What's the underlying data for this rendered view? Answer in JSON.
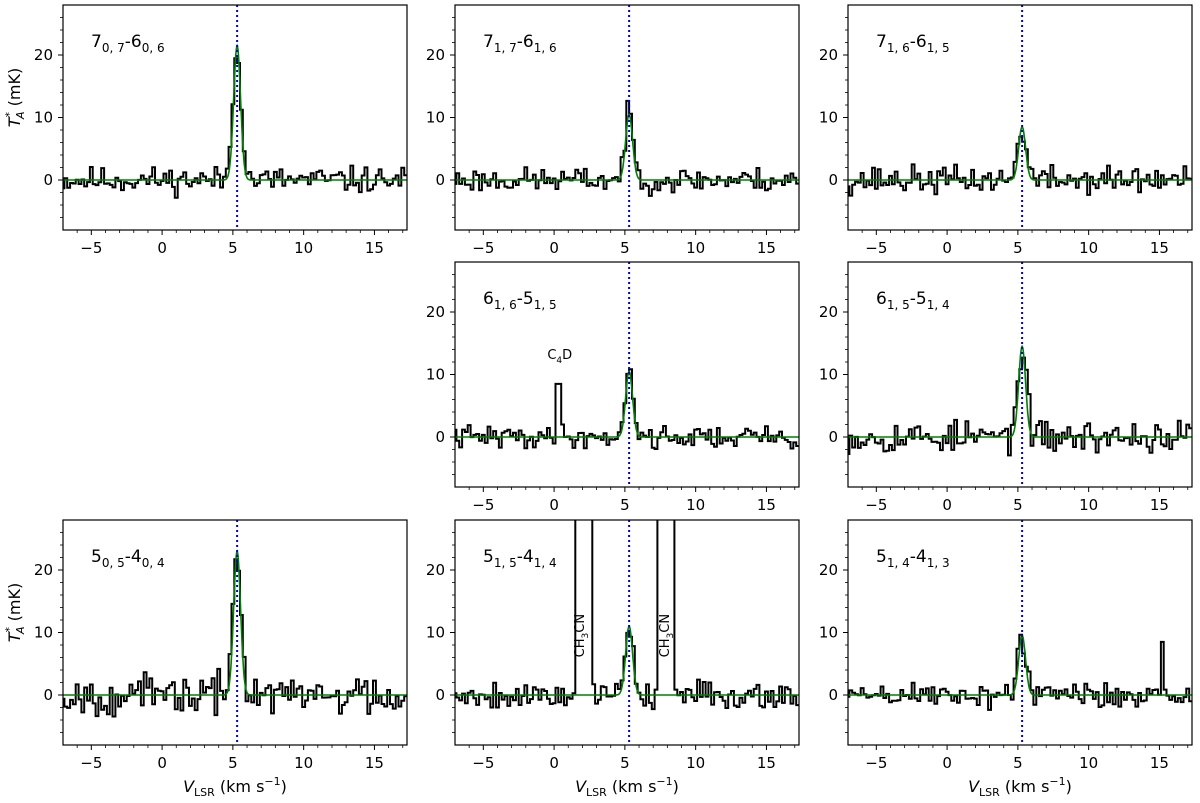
{
  "figure": {
    "xlabel_main": "V",
    "xlabel_sub": "LSR",
    "xlabel_unit": " (km s",
    "xlabel_exp": "−1",
    "xlabel_close": ")",
    "ylabel_main": "T",
    "ylabel_sup": "*",
    "ylabel_sub": "A",
    "ylabel_unit": " (mK)"
  },
  "colors": {
    "spectrum": "#000000",
    "fit": "#008000",
    "vlsr": "#0000cc"
  },
  "chart_data": [
    {
      "type": "line",
      "panel": "7_0,7-6_0,6",
      "label_j": "7",
      "label_ka": "0, 7",
      "label_dash": "-",
      "label_j2": "6",
      "label_kb": "0, 6",
      "xlim": [
        -7,
        17.3
      ],
      "ylim": [
        -8,
        28
      ],
      "xticks": [
        "−5",
        "0",
        "5",
        "10",
        "15"
      ],
      "yticks": [
        "0",
        "10",
        "20"
      ],
      "show_xlabel": false,
      "show_ylabel": true,
      "vlsr": 5.3,
      "fit_peak": 21.5,
      "seed": 11,
      "noise": 1.6,
      "annotations": [],
      "extra_spikes": []
    },
    {
      "type": "line",
      "panel": "7_1,7-6_1,6",
      "label_j": "7",
      "label_ka": "1, 7",
      "label_dash": "-",
      "label_j2": "6",
      "label_kb": "1, 6",
      "xlim": [
        -7,
        17.3
      ],
      "ylim": [
        -8,
        28
      ],
      "xticks": [
        "−5",
        "0",
        "5",
        "10",
        "15"
      ],
      "yticks": [
        "0",
        "10",
        "20"
      ],
      "show_xlabel": false,
      "show_ylabel": false,
      "vlsr": 5.3,
      "fit_peak": 10.5,
      "seed": 23,
      "noise": 1.5,
      "annotations": [],
      "extra_spikes": []
    },
    {
      "type": "line",
      "panel": "7_1,6-6_1,5",
      "label_j": "7",
      "label_ka": "1, 6",
      "label_dash": "-",
      "label_j2": "6",
      "label_kb": "1, 5",
      "xlim": [
        -7,
        17.3
      ],
      "ylim": [
        -8,
        28
      ],
      "xticks": [
        "−5",
        "0",
        "5",
        "10",
        "15"
      ],
      "yticks": [
        "0",
        "10",
        "20"
      ],
      "show_xlabel": false,
      "show_ylabel": false,
      "vlsr": 5.3,
      "fit_peak": 8.5,
      "seed": 37,
      "noise": 1.7,
      "annotations": [],
      "extra_spikes": []
    },
    {
      "type": "line",
      "panel": "6_1,6-5_1,5",
      "label_j": "6",
      "label_ka": "1, 6",
      "label_dash": "-",
      "label_j2": "5",
      "label_kb": "1, 5",
      "xlim": [
        -7,
        17.3
      ],
      "ylim": [
        -8,
        28
      ],
      "xticks": [
        "−5",
        "0",
        "5",
        "10",
        "15"
      ],
      "yticks": [
        "0",
        "10",
        "20"
      ],
      "show_xlabel": false,
      "show_ylabel": false,
      "vlsr": 5.3,
      "fit_peak": 10.5,
      "seed": 41,
      "noise": 1.4,
      "annotations": [
        {
          "text": "C",
          "sub": "4",
          "rest": "D",
          "x": 0.4,
          "y": 12.5,
          "rotate": false
        }
      ],
      "extra_spikes": [
        {
          "x": 0.3,
          "y": 8.5
        }
      ]
    },
    {
      "type": "line",
      "panel": "6_1,5-5_1,4",
      "label_j": "6",
      "label_ka": "1, 5",
      "label_dash": "-",
      "label_j2": "5",
      "label_kb": "1, 4",
      "xlim": [
        -7,
        17.3
      ],
      "ylim": [
        -8,
        28
      ],
      "xticks": [
        "−5",
        "0",
        "5",
        "10",
        "15"
      ],
      "yticks": [
        "0",
        "10",
        "20"
      ],
      "show_xlabel": false,
      "show_ylabel": false,
      "vlsr": 5.3,
      "fit_peak": 14.5,
      "seed": 53,
      "noise": 2.0,
      "annotations": [],
      "extra_spikes": []
    },
    {
      "type": "line",
      "panel": "5_0,5-4_0,4",
      "label_j": "5",
      "label_ka": "0, 5",
      "label_dash": "-",
      "label_j2": "4",
      "label_kb": "0, 4",
      "xlim": [
        -7,
        17.3
      ],
      "ylim": [
        -8,
        28
      ],
      "xticks": [
        "−5",
        "0",
        "5",
        "10",
        "15"
      ],
      "yticks": [
        "0",
        "10",
        "20"
      ],
      "show_xlabel": true,
      "show_ylabel": true,
      "vlsr": 5.3,
      "fit_peak": 23.0,
      "seed": 67,
      "noise": 2.4,
      "annotations": [],
      "extra_spikes": []
    },
    {
      "type": "line",
      "panel": "5_1,5-4_1,4",
      "label_j": "5",
      "label_ka": "1, 5",
      "label_dash": "-",
      "label_j2": "4",
      "label_kb": "1, 4",
      "xlim": [
        -7,
        17.3
      ],
      "ylim": [
        -8,
        28
      ],
      "xticks": [
        "−5",
        "0",
        "5",
        "10",
        "15"
      ],
      "yticks": [
        "0",
        "10",
        "20"
      ],
      "show_xlabel": true,
      "show_ylabel": false,
      "vlsr": 5.3,
      "fit_peak": 11.0,
      "seed": 79,
      "noise": 1.7,
      "annotations": [
        {
          "text": "CH",
          "sub": "3",
          "rest": "CN",
          "x": 2.1,
          "y": 9.5,
          "rotate": true
        },
        {
          "text": "CH",
          "sub": "3",
          "rest": "CN",
          "x": 8.1,
          "y": 9.5,
          "rotate": true
        }
      ],
      "extra_spikes": [],
      "blocked": [
        [
          1.55,
          2.7
        ],
        [
          7.35,
          8.55
        ]
      ]
    },
    {
      "type": "line",
      "panel": "5_1,4-4_1,3",
      "label_j": "5",
      "label_ka": "1, 4",
      "label_dash": "-",
      "label_j2": "4",
      "label_kb": "1, 3",
      "xlim": [
        -7,
        17.3
      ],
      "ylim": [
        -8,
        28
      ],
      "xticks": [
        "−5",
        "0",
        "5",
        "10",
        "15"
      ],
      "yticks": [
        "0",
        "10",
        "20"
      ],
      "show_xlabel": true,
      "show_ylabel": false,
      "vlsr": 5.3,
      "fit_peak": 9.5,
      "seed": 89,
      "noise": 1.7,
      "annotations": [],
      "extra_spikes": [
        {
          "x": 15.2,
          "y": 8.5
        }
      ]
    }
  ]
}
